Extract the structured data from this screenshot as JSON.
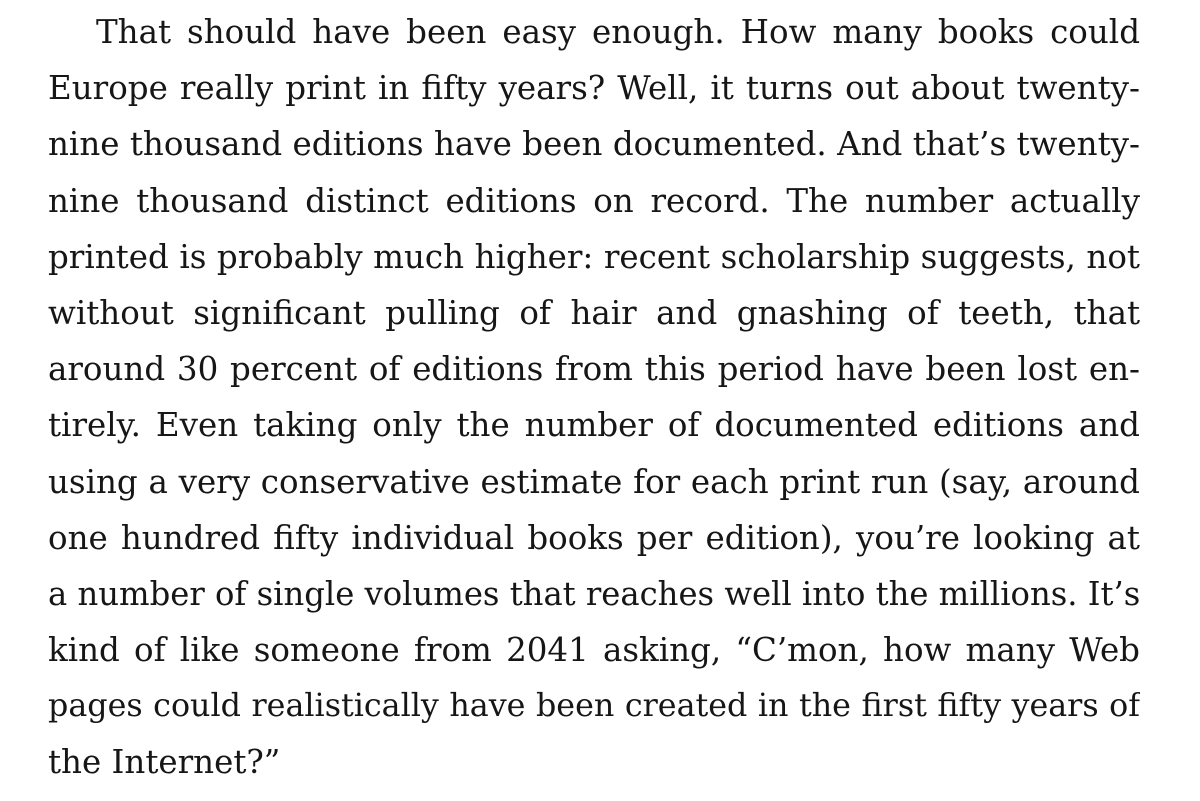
{
  "passage": {
    "lines": [
      "That should have been easy enough. How many books could",
      "Europe really print in fifty years? Well, it turns out about twenty-",
      "nine thousand editions have been documented. And that’s twenty-",
      "nine thousand distinct editions on record. The number actually",
      "printed is probably much higher: recent scholarship suggests, not",
      "without significant pulling of hair and gnashing of teeth, that",
      "around 30 percent of editions from this period have been lost en-",
      "tirely. Even taking only the number of documented editions and",
      "using a very conservative estimate for each print run (say, around",
      "one hundred fifty individual books per edition), you’re looking at",
      "a number of single volumes that reaches well into the millions. It’s",
      "kind of like someone from 2041 asking, “C’mon, how many Web",
      "pages could realistically have been created in the first fifty years of",
      "the Internet?”"
    ]
  }
}
